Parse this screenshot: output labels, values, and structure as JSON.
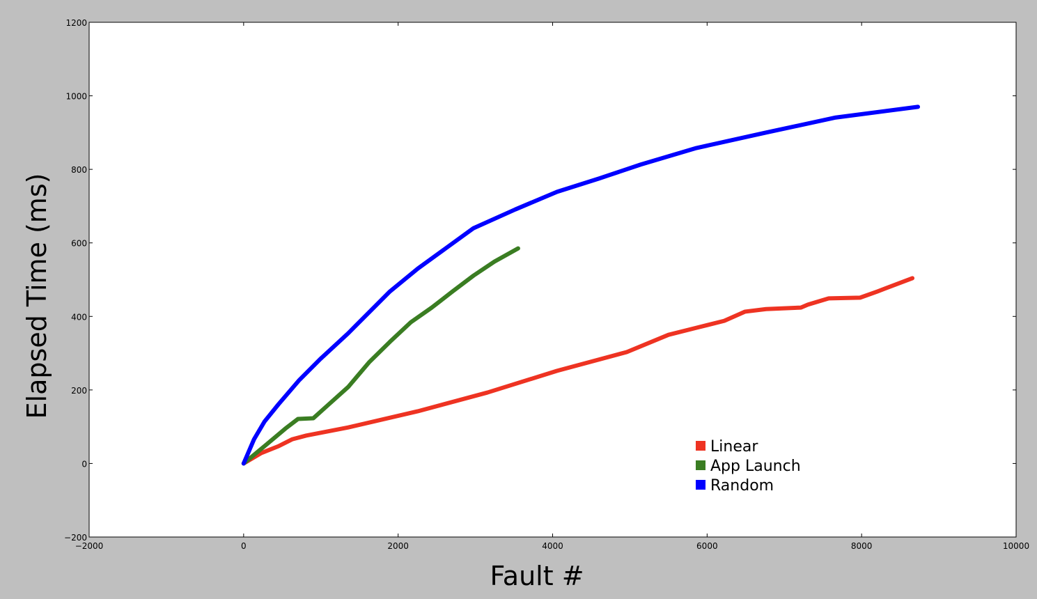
{
  "chart_data": {
    "type": "line",
    "title": "",
    "xlabel": "Fault #",
    "ylabel": "Elapsed Time (ms)",
    "xlim": [
      -2000,
      10000
    ],
    "ylim": [
      -200,
      1200
    ],
    "xticks": [
      -2000,
      0,
      2000,
      4000,
      6000,
      8000,
      10000
    ],
    "xtick_labels": [
      "−2000",
      "0",
      "2000",
      "4000",
      "6000",
      "8000",
      "10000"
    ],
    "yticks": [
      -200,
      0,
      200,
      400,
      600,
      800,
      1000,
      1200
    ],
    "ytick_labels": [
      "−200",
      "0",
      "200",
      "400",
      "600",
      "800",
      "1000",
      "1200"
    ],
    "grid": false,
    "legend_position": "lower-right",
    "series": [
      {
        "name": "Linear",
        "color": "#ee3322",
        "x": [
          0,
          225,
          451,
          631,
          812,
          1353,
          2254,
          3156,
          4058,
          4959,
          5500,
          5861,
          6222,
          6492,
          6763,
          7214,
          7304,
          7574,
          7980,
          8206,
          8657
        ],
        "y": [
          0,
          28,
          47,
          66,
          76,
          98,
          142,
          193,
          252,
          303,
          350,
          369,
          388,
          413,
          420,
          424,
          432,
          449,
          451,
          468,
          504
        ]
      },
      {
        "name": "App Launch",
        "color": "#3a7d22",
        "x": [
          0,
          270,
          541,
          703,
          902,
          1082,
          1353,
          1623,
          1894,
          2164,
          2435,
          2705,
          2976,
          3246,
          3553
        ],
        "y": [
          0,
          47,
          95,
          121,
          123,
          157,
          208,
          275,
          331,
          384,
          424,
          468,
          511,
          549,
          585
        ]
      },
      {
        "name": "Random",
        "color": "#0000ff",
        "x": [
          0,
          135,
          270,
          451,
          721,
          992,
          1353,
          1623,
          1894,
          2254,
          2615,
          2976,
          3517,
          4058,
          4599,
          5140,
          5861,
          6763,
          7665,
          8729
        ],
        "y": [
          0,
          66,
          114,
          161,
          227,
          284,
          354,
          411,
          468,
          530,
          585,
          640,
          691,
          739,
          775,
          813,
          858,
          900,
          941,
          970
        ]
      }
    ]
  }
}
